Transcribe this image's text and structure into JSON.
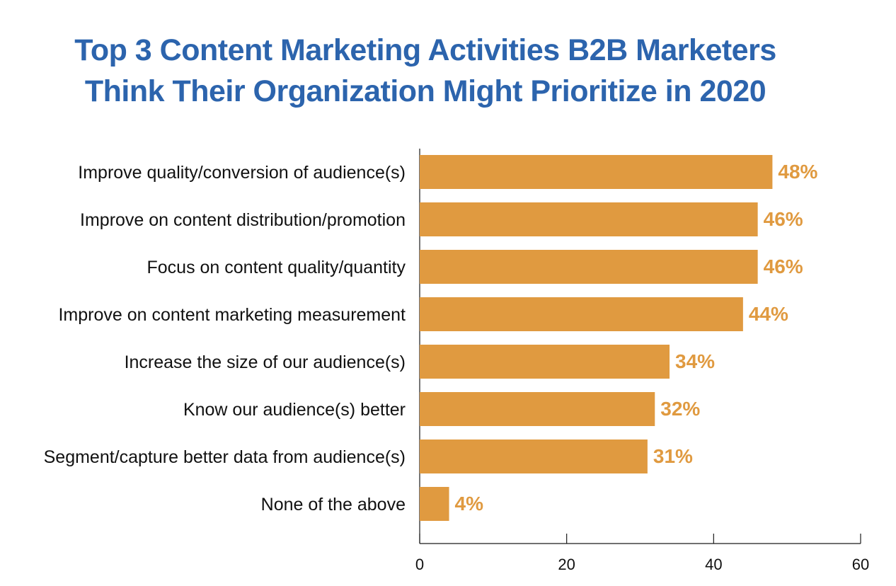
{
  "chart_data": {
    "type": "bar",
    "orientation": "horizontal",
    "title_lines": [
      "Top 3 Content Marketing Activities B2B Marketers",
      "Think Their Organization Might Prioritize in 2020"
    ],
    "categories": [
      "Improve quality/conversion of audience(s)",
      "Improve on content distribution/promotion",
      "Focus on content quality/quantity",
      "Improve on content marketing measurement",
      "Increase the size of our audience(s)",
      "Know our audience(s) better",
      "Segment/capture better data from audience(s)",
      "None of the above"
    ],
    "values": [
      48,
      46,
      46,
      44,
      34,
      32,
      31,
      4
    ],
    "data_labels": [
      "48%",
      "46%",
      "46%",
      "44%",
      "34%",
      "32%",
      "31%",
      "4%"
    ],
    "xlim": [
      0,
      60
    ],
    "x_ticks": [
      0,
      20,
      40,
      60
    ],
    "xlabel": "",
    "ylabel": "",
    "grid": false,
    "legend": "none",
    "colors": {
      "bar": "#e09a40",
      "data_label": "#e09a40",
      "title": "#2c64ad",
      "axis": "#1a1a1a",
      "text": "#111111"
    }
  }
}
